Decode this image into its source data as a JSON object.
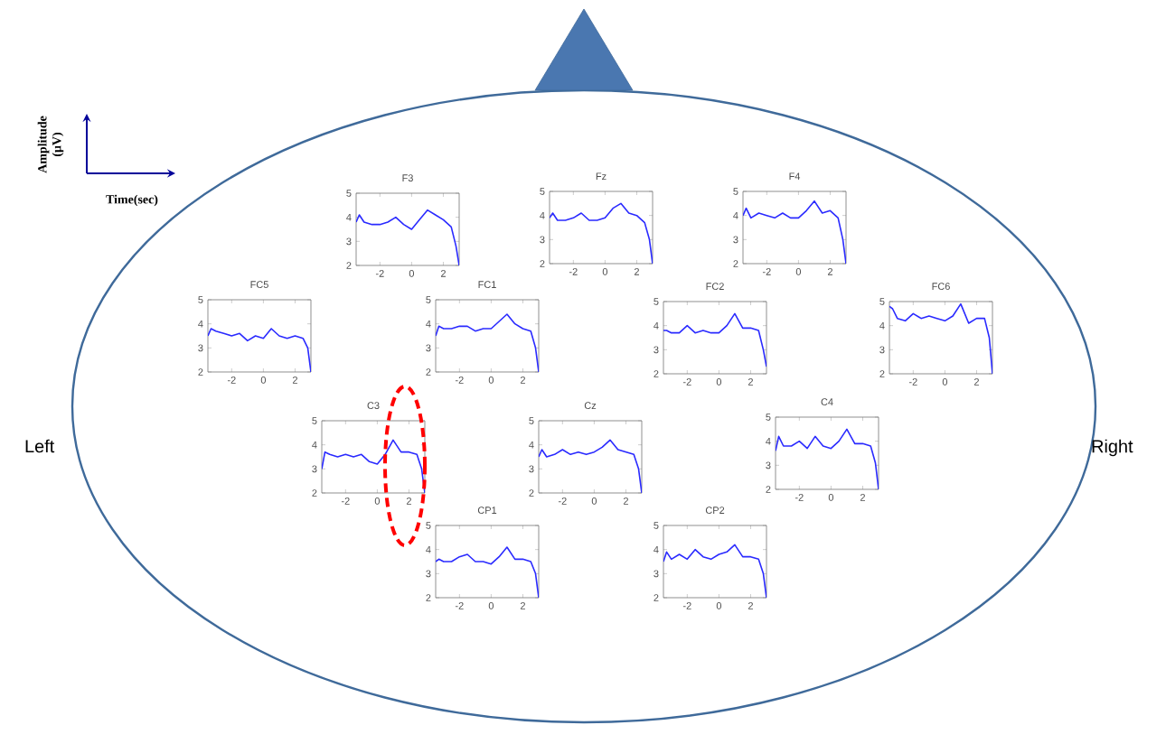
{
  "chart_data": [
    {
      "type": "line",
      "title": "F3",
      "x": [
        -3.5,
        -3.3,
        -3,
        -2.5,
        -2,
        -1.5,
        -1,
        -0.5,
        0,
        0.5,
        1,
        1.5,
        2,
        2.5,
        2.8,
        3
      ],
      "series": [
        {
          "color": "#2a2aff",
          "values": [
            3.8,
            4.1,
            3.8,
            3.7,
            3.7,
            3.8,
            4.0,
            3.7,
            3.5,
            3.9,
            4.3,
            4.1,
            3.9,
            3.6,
            2.8,
            2.0
          ]
        }
      ],
      "xlim": [
        -3.5,
        3
      ],
      "ylim": [
        2,
        5
      ],
      "xticks": [
        -2,
        0,
        2
      ],
      "yticks": [
        2,
        3,
        4,
        5
      ]
    },
    {
      "type": "line",
      "title": "Fz",
      "x": [
        -3.5,
        -3.3,
        -3,
        -2.5,
        -2,
        -1.5,
        -1,
        -0.5,
        0,
        0.5,
        1,
        1.5,
        2,
        2.5,
        2.8,
        3
      ],
      "series": [
        {
          "color": "#2a2aff",
          "values": [
            3.9,
            4.1,
            3.8,
            3.8,
            3.9,
            4.1,
            3.8,
            3.8,
            3.9,
            4.3,
            4.5,
            4.1,
            4.0,
            3.7,
            3.0,
            2.0
          ]
        }
      ],
      "xlim": [
        -3.5,
        3
      ],
      "ylim": [
        2,
        5
      ],
      "xticks": [
        -2,
        0,
        2
      ],
      "yticks": [
        2,
        3,
        4,
        5
      ]
    },
    {
      "type": "line",
      "title": "F4",
      "x": [
        -3.5,
        -3.3,
        -3,
        -2.5,
        -2,
        -1.5,
        -1,
        -0.5,
        0,
        0.5,
        1,
        1.5,
        2,
        2.5,
        2.8,
        3
      ],
      "series": [
        {
          "color": "#2a2aff",
          "values": [
            4.0,
            4.3,
            3.9,
            4.1,
            4.0,
            3.9,
            4.1,
            3.9,
            3.9,
            4.2,
            4.6,
            4.1,
            4.2,
            3.9,
            3.0,
            2.0
          ]
        }
      ],
      "xlim": [
        -3.5,
        3
      ],
      "ylim": [
        2,
        5
      ],
      "xticks": [
        -2,
        0,
        2
      ],
      "yticks": [
        2,
        3,
        4,
        5
      ]
    },
    {
      "type": "line",
      "title": "FC5",
      "x": [
        -3.5,
        -3.3,
        -3,
        -2.5,
        -2,
        -1.5,
        -1,
        -0.5,
        0,
        0.5,
        1,
        1.5,
        2,
        2.5,
        2.8,
        3
      ],
      "series": [
        {
          "color": "#2a2aff",
          "values": [
            3.5,
            3.8,
            3.7,
            3.6,
            3.5,
            3.6,
            3.3,
            3.5,
            3.4,
            3.8,
            3.5,
            3.4,
            3.5,
            3.4,
            3.0,
            2.0
          ]
        }
      ],
      "xlim": [
        -3.5,
        3
      ],
      "ylim": [
        2,
        5
      ],
      "xticks": [
        -2,
        0,
        2
      ],
      "yticks": [
        2,
        3,
        4,
        5
      ]
    },
    {
      "type": "line",
      "title": "FC1",
      "x": [
        -3.5,
        -3.3,
        -3,
        -2.5,
        -2,
        -1.5,
        -1,
        -0.5,
        0,
        0.5,
        1,
        1.5,
        2,
        2.5,
        2.8,
        3
      ],
      "series": [
        {
          "color": "#2a2aff",
          "values": [
            3.5,
            3.9,
            3.8,
            3.8,
            3.9,
            3.9,
            3.7,
            3.8,
            3.8,
            4.1,
            4.4,
            4.0,
            3.8,
            3.7,
            3.0,
            2.0
          ]
        }
      ],
      "xlim": [
        -3.5,
        3
      ],
      "ylim": [
        2,
        5
      ],
      "xticks": [
        -2,
        0,
        2
      ],
      "yticks": [
        2,
        3,
        4,
        5
      ]
    },
    {
      "type": "line",
      "title": "FC2",
      "x": [
        -3.5,
        -3.3,
        -3,
        -2.5,
        -2,
        -1.5,
        -1,
        -0.5,
        0,
        0.5,
        1,
        1.5,
        2,
        2.5,
        2.8,
        3
      ],
      "series": [
        {
          "color": "#2a2aff",
          "values": [
            3.8,
            3.8,
            3.7,
            3.7,
            4.0,
            3.7,
            3.8,
            3.7,
            3.7,
            4.0,
            4.5,
            3.9,
            3.9,
            3.8,
            3.0,
            2.3
          ]
        }
      ],
      "xlim": [
        -3.5,
        3
      ],
      "ylim": [
        2,
        5
      ],
      "xticks": [
        -2,
        0,
        2
      ],
      "yticks": [
        2,
        3,
        4,
        5
      ]
    },
    {
      "type": "line",
      "title": "FC6",
      "x": [
        -3.5,
        -3.3,
        -3,
        -2.5,
        -2,
        -1.5,
        -1,
        -0.5,
        0,
        0.5,
        1,
        1.5,
        2,
        2.5,
        2.8,
        3
      ],
      "series": [
        {
          "color": "#2a2aff",
          "values": [
            4.8,
            4.7,
            4.3,
            4.2,
            4.5,
            4.3,
            4.4,
            4.3,
            4.2,
            4.4,
            4.9,
            4.1,
            4.3,
            4.3,
            3.5,
            2.0
          ]
        }
      ],
      "xlim": [
        -3.5,
        3
      ],
      "ylim": [
        2,
        5
      ],
      "xticks": [
        -2,
        0,
        2
      ],
      "yticks": [
        2,
        3,
        4,
        5
      ]
    },
    {
      "type": "line",
      "title": "C3",
      "x": [
        -3.5,
        -3.3,
        -3,
        -2.5,
        -2,
        -1.5,
        -1,
        -0.5,
        0,
        0.5,
        1,
        1.5,
        2,
        2.5,
        2.8,
        3
      ],
      "series": [
        {
          "color": "#2a2aff",
          "values": [
            3.0,
            3.7,
            3.6,
            3.5,
            3.6,
            3.5,
            3.6,
            3.3,
            3.2,
            3.6,
            4.2,
            3.7,
            3.7,
            3.6,
            3.0,
            2.0
          ]
        }
      ],
      "xlim": [
        -3.5,
        3
      ],
      "ylim": [
        2,
        5
      ],
      "xticks": [
        -2,
        0,
        2
      ],
      "yticks": [
        2,
        3,
        4,
        5
      ]
    },
    {
      "type": "line",
      "title": "Cz",
      "x": [
        -3.5,
        -3.3,
        -3,
        -2.5,
        -2,
        -1.5,
        -1,
        -0.5,
        0,
        0.5,
        1,
        1.5,
        2,
        2.5,
        2.8,
        3
      ],
      "series": [
        {
          "color": "#2a2aff",
          "values": [
            3.5,
            3.8,
            3.5,
            3.6,
            3.8,
            3.6,
            3.7,
            3.6,
            3.7,
            3.9,
            4.2,
            3.8,
            3.7,
            3.6,
            3.0,
            2.0
          ]
        }
      ],
      "xlim": [
        -3.5,
        3
      ],
      "ylim": [
        2,
        5
      ],
      "xticks": [
        -2,
        0,
        2
      ],
      "yticks": [
        2,
        3,
        4,
        5
      ]
    },
    {
      "type": "line",
      "title": "C4",
      "x": [
        -3.5,
        -3.3,
        -3,
        -2.5,
        -2,
        -1.5,
        -1,
        -0.5,
        0,
        0.5,
        1,
        1.5,
        2,
        2.5,
        2.8,
        3
      ],
      "series": [
        {
          "color": "#2a2aff",
          "values": [
            3.6,
            4.2,
            3.8,
            3.8,
            4.0,
            3.7,
            4.2,
            3.8,
            3.7,
            4.0,
            4.5,
            3.9,
            3.9,
            3.8,
            3.1,
            2.0
          ]
        }
      ],
      "xlim": [
        -3.5,
        3
      ],
      "ylim": [
        2,
        5
      ],
      "xticks": [
        -2,
        0,
        2
      ],
      "yticks": [
        2,
        3,
        4,
        5
      ]
    },
    {
      "type": "line",
      "title": "CP1",
      "x": [
        -3.5,
        -3.3,
        -3,
        -2.5,
        -2,
        -1.5,
        -1,
        -0.5,
        0,
        0.5,
        1,
        1.5,
        2,
        2.5,
        2.8,
        3
      ],
      "series": [
        {
          "color": "#2a2aff",
          "values": [
            3.5,
            3.6,
            3.5,
            3.5,
            3.7,
            3.8,
            3.5,
            3.5,
            3.4,
            3.7,
            4.1,
            3.6,
            3.6,
            3.5,
            3.0,
            2.0
          ]
        }
      ],
      "xlim": [
        -3.5,
        3
      ],
      "ylim": [
        2,
        5
      ],
      "xticks": [
        -2,
        0,
        2
      ],
      "yticks": [
        2,
        3,
        4,
        5
      ]
    },
    {
      "type": "line",
      "title": "CP2",
      "x": [
        -3.5,
        -3.3,
        -3,
        -2.5,
        -2,
        -1.5,
        -1,
        -0.5,
        0,
        0.5,
        1,
        1.5,
        2,
        2.5,
        2.8,
        3
      ],
      "series": [
        {
          "color": "#2a2aff",
          "values": [
            3.5,
            3.9,
            3.6,
            3.8,
            3.6,
            4.0,
            3.7,
            3.6,
            3.8,
            3.9,
            4.2,
            3.7,
            3.7,
            3.6,
            3.0,
            2.0
          ]
        }
      ],
      "xlim": [
        -3.5,
        3
      ],
      "ylim": [
        2,
        5
      ],
      "xticks": [
        -2,
        0,
        2
      ],
      "yticks": [
        2,
        3,
        4,
        5
      ]
    },
    {
      "type": "other",
      "annotations": [
        "Left",
        "Right",
        "Amplitude (μV)",
        "Time(sec)"
      ]
    }
  ]
}
